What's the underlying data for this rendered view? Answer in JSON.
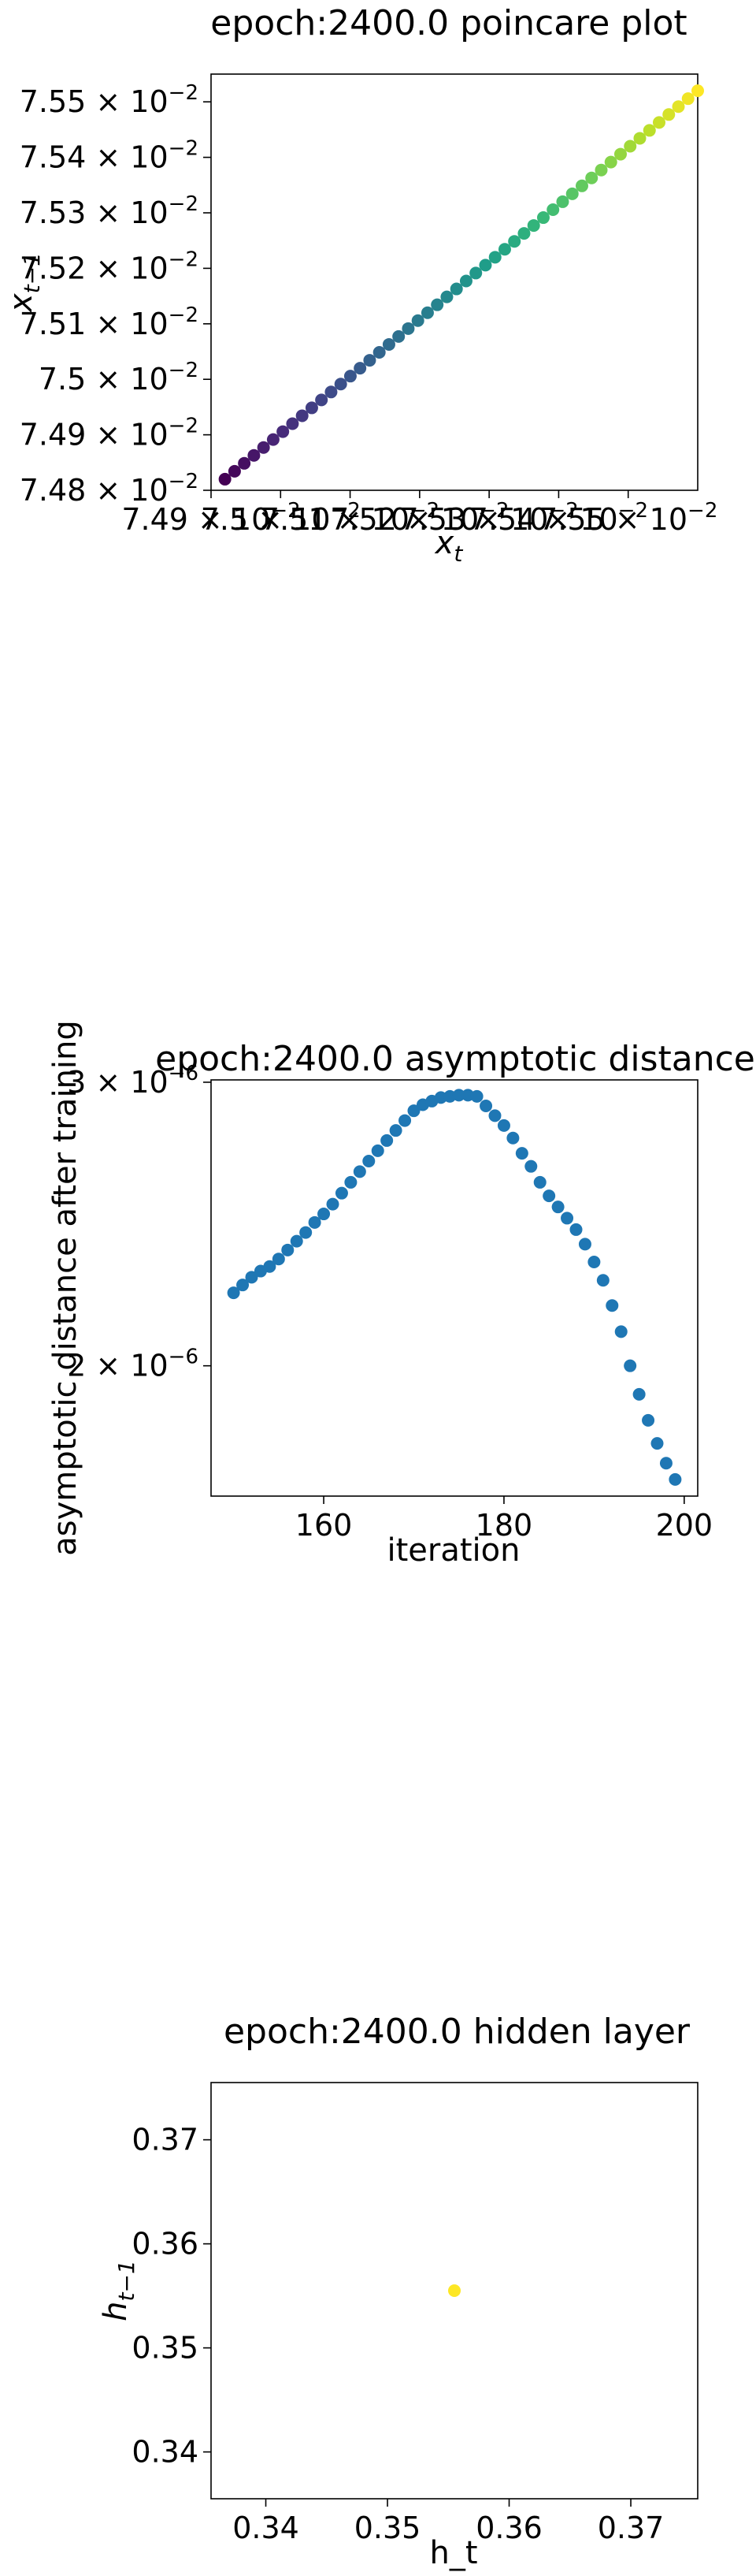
{
  "chart_data": [
    {
      "type": "scatter",
      "title": "epoch:2400.0 poincare plot",
      "xlabel": "x_t",
      "ylabel": "x_{t-1}",
      "color_map": "viridis",
      "xlim": [
        0.0749,
        0.0756
      ],
      "ylim": [
        0.0748,
        0.07555
      ],
      "x_ticks": [
        0.0749,
        0.075,
        0.0751,
        0.0752,
        0.0753,
        0.0754,
        0.0755
      ],
      "x_tick_labels": [
        "7.49 × 10^{-2}",
        "7.5 × 10^{-2}",
        "7.51 × 10^{-2}",
        "7.52 × 10^{-2}",
        "7.53 × 10^{-2}",
        "7.54 × 10^{-2}",
        "7.55 × 10^{-2}"
      ],
      "y_ticks": [
        0.0748,
        0.0749,
        0.075,
        0.0751,
        0.0752,
        0.0753,
        0.0754,
        0.0755
      ],
      "y_tick_labels": [
        "7.48 × 10^{-2}",
        "7.49 × 10^{-2}",
        "7.5 × 10^{-2}",
        "7.51 × 10^{-2}",
        "7.52 × 10^{-2}",
        "7.53 × 10^{-2}",
        "7.54 × 10^{-2}",
        "7.55 × 10^{-2}"
      ],
      "x_start": 0.07492,
      "x_end": 0.0756,
      "y_start": 0.07482,
      "y_end": 0.07552,
      "n_points": 50
    },
    {
      "type": "scatter",
      "title": "epoch:2400.0 asymptotic distance",
      "xlabel": "iteration",
      "ylabel": "asymptotic distance after training",
      "y_scale": "log",
      "xlim": [
        147.5,
        201.5
      ],
      "ylim": [
        1.66e-06,
        3.01e-06
      ],
      "x_ticks": [
        160,
        180,
        200
      ],
      "x_tick_labels": [
        "160",
        "180",
        "200"
      ],
      "y_ticks": [
        2e-06,
        3e-06
      ],
      "y_tick_labels": [
        "2 × 10^{-6}",
        "3 × 10^{-6}"
      ],
      "color": "#1f77b4",
      "x": [
        150,
        151,
        152,
        153,
        154,
        155,
        156,
        157,
        158,
        159,
        160,
        161,
        162,
        163,
        164,
        165,
        166,
        167,
        168,
        169,
        170,
        171,
        172,
        173,
        174,
        175,
        176,
        177,
        178,
        179,
        180,
        181,
        182,
        183,
        184,
        185,
        186,
        187,
        188,
        189,
        190,
        191,
        192,
        193,
        194,
        195,
        196,
        197,
        198,
        199
      ],
      "y": [
        2.22e-06,
        2.245e-06,
        2.27e-06,
        2.29e-06,
        2.305e-06,
        2.33e-06,
        2.36e-06,
        2.39e-06,
        2.42e-06,
        2.455e-06,
        2.485e-06,
        2.52e-06,
        2.56e-06,
        2.6e-06,
        2.64e-06,
        2.68e-06,
        2.72e-06,
        2.76e-06,
        2.8e-06,
        2.84e-06,
        2.88e-06,
        2.905e-06,
        2.92e-06,
        2.935e-06,
        2.94e-06,
        2.945e-06,
        2.945e-06,
        2.94e-06,
        2.9e-06,
        2.86e-06,
        2.82e-06,
        2.77e-06,
        2.71e-06,
        2.66e-06,
        2.6e-06,
        2.55e-06,
        2.51e-06,
        2.47e-06,
        2.43e-06,
        2.38e-06,
        2.32e-06,
        2.26e-06,
        2.18e-06,
        2.1e-06,
        2e-06,
        1.92e-06,
        1.85e-06,
        1.79e-06,
        1.74e-06,
        1.7e-06
      ]
    },
    {
      "type": "scatter",
      "title": "epoch:2400.0 hidden layer",
      "xlabel": "h_t",
      "ylabel": "h_{t-1}",
      "xlim": [
        0.3355,
        0.3755
      ],
      "ylim": [
        0.3355,
        0.3755
      ],
      "x_ticks": [
        0.34,
        0.35,
        0.36,
        0.37
      ],
      "x_tick_labels": [
        "0.34",
        "0.35",
        "0.36",
        "0.37"
      ],
      "y_ticks": [
        0.34,
        0.35,
        0.36,
        0.37
      ],
      "y_tick_labels": [
        "0.34",
        "0.35",
        "0.36",
        "0.37"
      ],
      "color": "#fde725",
      "x": [
        0.3555
      ],
      "y": [
        0.3555
      ]
    }
  ]
}
